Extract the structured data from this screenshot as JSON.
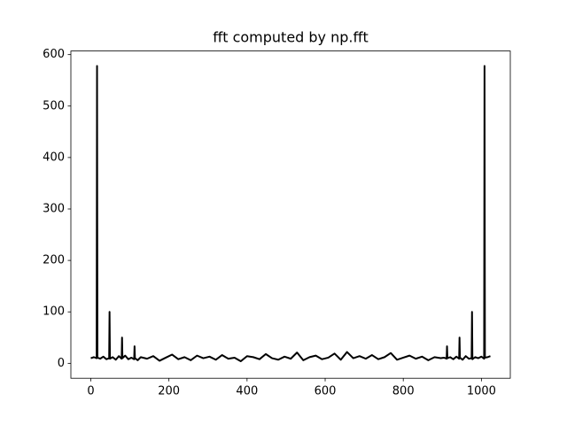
{
  "chart_data": {
    "type": "line",
    "title": "fft computed by np.fft",
    "x": [
      0,
      8,
      15,
      16,
      17,
      24,
      32,
      40,
      47,
      48,
      49,
      56,
      64,
      72,
      79,
      80,
      81,
      88,
      96,
      104,
      111,
      112,
      113,
      120,
      128,
      144,
      160,
      176,
      192,
      208,
      224,
      240,
      256,
      272,
      288,
      304,
      320,
      336,
      352,
      368,
      384,
      400,
      416,
      432,
      448,
      464,
      480,
      496,
      512,
      528,
      544,
      560,
      576,
      592,
      608,
      624,
      640,
      656,
      672,
      688,
      704,
      720,
      736,
      752,
      768,
      784,
      800,
      816,
      832,
      848,
      864,
      880,
      896,
      904,
      911,
      912,
      913,
      920,
      928,
      936,
      943,
      944,
      945,
      952,
      960,
      968,
      975,
      976,
      977,
      984,
      992,
      1000,
      1007,
      1008,
      1009,
      1016,
      1023
    ],
    "series": [
      {
        "color": "#000000",
        "values": [
          10,
          12,
          10,
          578,
          11,
          9,
          13,
          8,
          10,
          100,
          9,
          12,
          7,
          14,
          9,
          50,
          10,
          15,
          8,
          11,
          8,
          33,
          10,
          6,
          12,
          9,
          14,
          5,
          11,
          17,
          8,
          12,
          6,
          15,
          10,
          13,
          7,
          16,
          9,
          11,
          4,
          14,
          12,
          8,
          18,
          10,
          7,
          13,
          9,
          21,
          6,
          12,
          15,
          8,
          11,
          19,
          7,
          22,
          10,
          14,
          9,
          16,
          8,
          12,
          20,
          7,
          11,
          15,
          9,
          13,
          6,
          12,
          10,
          11,
          9,
          33,
          10,
          12,
          8,
          13,
          9,
          50,
          11,
          7,
          14,
          9,
          10,
          100,
          8,
          12,
          10,
          13,
          9,
          578,
          11,
          12,
          14
        ]
      }
    ],
    "xlim": [
      -51,
      1074
    ],
    "xticks": [
      0,
      200,
      400,
      600,
      800,
      1000
    ],
    "ylim": [
      -29,
      607
    ],
    "yticks": [
      0,
      100,
      200,
      300,
      400,
      500,
      600
    ]
  }
}
